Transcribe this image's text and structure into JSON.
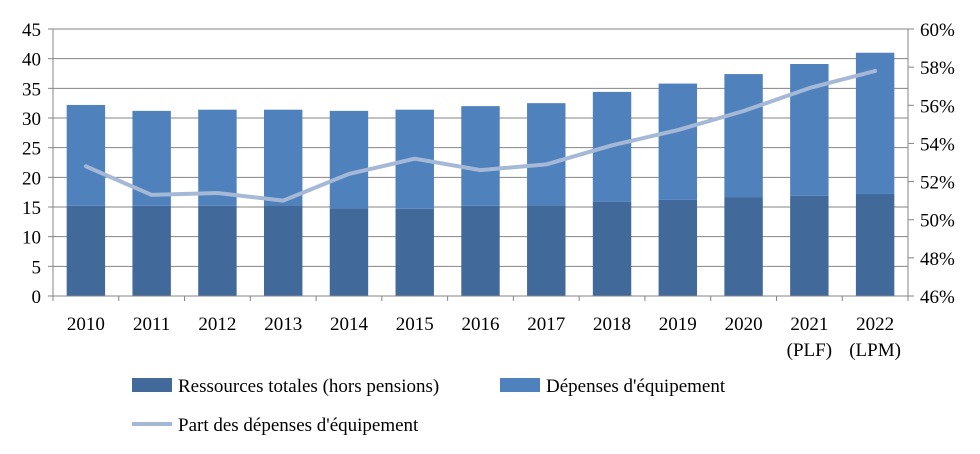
{
  "chart_data": {
    "type": "bar",
    "stacked": true,
    "categories": [
      [
        "2010"
      ],
      [
        "2011"
      ],
      [
        "2012"
      ],
      [
        "2013"
      ],
      [
        "2014"
      ],
      [
        "2015"
      ],
      [
        "2016"
      ],
      [
        "2017"
      ],
      [
        "2018"
      ],
      [
        "2019"
      ],
      [
        "2020"
      ],
      [
        "2021",
        "(PLF)"
      ],
      [
        "2022",
        "(LPM)"
      ]
    ],
    "series": [
      {
        "name": "Ressources totales (hors pensions)",
        "kind": "bar",
        "axis": "left",
        "color": "#41699a",
        "values": [
          15.2,
          15.2,
          15.2,
          15.3,
          14.8,
          14.7,
          15.2,
          15.3,
          15.9,
          16.2,
          16.6,
          16.9,
          17.2
        ]
      },
      {
        "name": "Dépenses d'équipement",
        "kind": "bar",
        "axis": "left",
        "color": "#4f81bd",
        "values": [
          17.0,
          16.0,
          16.2,
          16.1,
          16.4,
          16.7,
          16.8,
          17.2,
          18.5,
          19.6,
          20.8,
          22.2,
          23.8
        ]
      },
      {
        "name": "Part des dépenses d'équipement",
        "kind": "line",
        "axis": "right",
        "color": "#a5b8d6",
        "values": [
          52.8,
          51.3,
          51.4,
          51.0,
          52.4,
          53.2,
          52.6,
          52.9,
          53.9,
          54.7,
          55.7,
          56.9,
          57.8
        ]
      }
    ],
    "left_axis": {
      "ylim": [
        0,
        45
      ],
      "ticks": [
        "0",
        "5",
        "10",
        "15",
        "20",
        "25",
        "30",
        "35",
        "40",
        "45"
      ]
    },
    "right_axis": {
      "ylim": [
        46,
        60
      ],
      "ticks": [
        "46%",
        "48%",
        "50%",
        "52%",
        "54%",
        "56%",
        "58%",
        "60%"
      ]
    },
    "grid": true,
    "legend": "bottom",
    "title": "",
    "xlabel": "",
    "ylabel": ""
  }
}
